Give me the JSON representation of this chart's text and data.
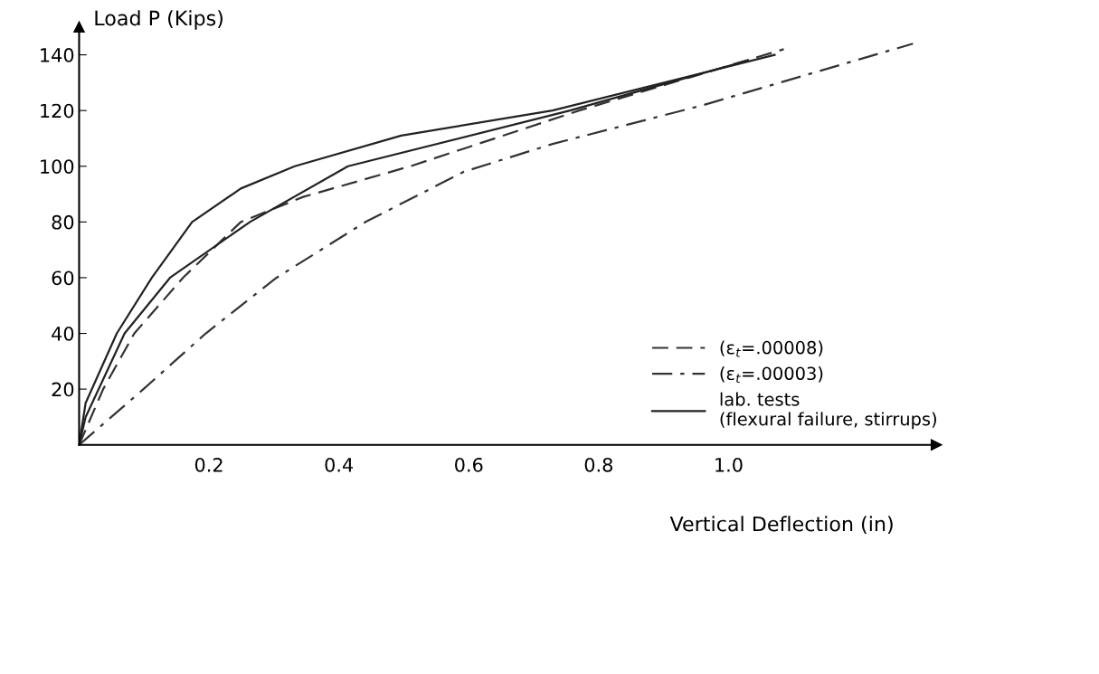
{
  "chart_data": {
    "type": "line",
    "ylabel": "Load P (Kips)",
    "xlabel": "Vertical Deflection (in)",
    "xlim": [
      0,
      1.32
    ],
    "ylim": [
      0,
      150
    ],
    "xticks": [
      0.2,
      0.4,
      0.6,
      0.8,
      {
        "value": 1.0,
        "label": "1.0"
      }
    ],
    "yticks": [
      20,
      40,
      60,
      80,
      100,
      120,
      140
    ],
    "grid": false,
    "legend": "bottom right",
    "marker": "none",
    "series": [
      {
        "name": "(ε$_{t}$=.00008)",
        "color": "#333333",
        "line_style": "dashed",
        "x": [
          0,
          0.037,
          0.085,
          0.16,
          0.249,
          0.345,
          0.51,
          0.77,
          1.085
        ],
        "values": [
          0,
          20,
          40,
          60,
          80,
          89,
          100,
          120,
          142
        ]
      },
      {
        "name": "(ε$_{t}$=.00003)",
        "color": "#333333",
        "line_style": "dashdot",
        "x": [
          0,
          0.099,
          0.195,
          0.304,
          0.441,
          0.592,
          0.729,
          0.962,
          1.284
        ],
        "values": [
          0,
          20,
          40,
          60,
          80,
          98,
          108,
          122,
          144
        ]
      },
      {
        "name": "lab. tests\n(flexural failure, stirrups)",
        "color": "#222222",
        "line_style": "solid",
        "x": [
          0,
          0.01,
          0.058,
          0.112,
          0.174,
          0.249,
          0.332,
          0.496,
          0.729,
          1.071
        ],
        "values": [
          0,
          15,
          40,
          60,
          80,
          92,
          100,
          111,
          120,
          140
        ]
      },
      {
        "color": "#222222",
        "line_style": "solid",
        "x": [
          0,
          0.01,
          0.07,
          0.14,
          0.263,
          0.414,
          0.756,
          1.03
        ],
        "values": [
          0,
          10,
          40,
          60,
          80,
          100,
          120,
          138
        ]
      }
    ]
  }
}
